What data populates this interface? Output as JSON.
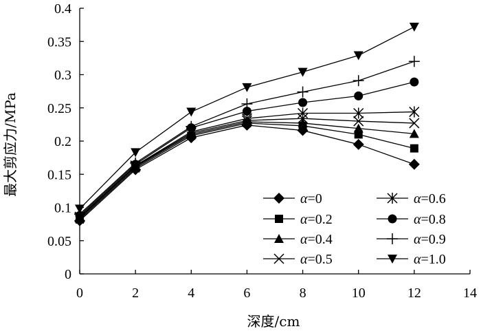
{
  "chart_data": {
    "type": "line",
    "title": "",
    "xlabel": "深度/cm",
    "ylabel": "最大剪应力/MPa",
    "xlim": [
      0,
      14
    ],
    "ylim": [
      0,
      0.4
    ],
    "xticks": [
      0,
      2,
      4,
      6,
      8,
      10,
      12,
      14
    ],
    "yticks": [
      0,
      0.05,
      0.1,
      0.15,
      0.2,
      0.25,
      0.3,
      0.35,
      0.4
    ],
    "ytick_labels": [
      "0",
      "0.05",
      "0.1",
      "0.15",
      "0.2",
      "0.25",
      "0.3",
      "0.35",
      "0.4"
    ],
    "x": [
      0,
      2,
      4,
      6,
      8,
      10,
      12
    ],
    "legend_prefix": "α",
    "legend_position": "bottom-right",
    "grid": false,
    "series": [
      {
        "name": "=0",
        "marker": "diamond",
        "values": [
          0.08,
          0.157,
          0.205,
          0.224,
          0.216,
          0.195,
          0.165
        ]
      },
      {
        "name": "=0.2",
        "marker": "square",
        "values": [
          0.082,
          0.159,
          0.208,
          0.227,
          0.223,
          0.21,
          0.189
        ]
      },
      {
        "name": "=0.4",
        "marker": "triangle",
        "values": [
          0.084,
          0.161,
          0.21,
          0.229,
          0.227,
          0.219,
          0.211
        ]
      },
      {
        "name": "=0.5",
        "marker": "x",
        "values": [
          0.085,
          0.162,
          0.212,
          0.231,
          0.234,
          0.23,
          0.227
        ]
      },
      {
        "name": "=0.6",
        "marker": "star",
        "values": [
          0.086,
          0.163,
          0.214,
          0.234,
          0.242,
          0.242,
          0.244
        ]
      },
      {
        "name": "=0.8",
        "marker": "circle",
        "values": [
          0.088,
          0.165,
          0.22,
          0.245,
          0.258,
          0.268,
          0.289
        ]
      },
      {
        "name": "=0.9",
        "marker": "plus",
        "values": [
          0.09,
          0.167,
          0.222,
          0.256,
          0.274,
          0.291,
          0.32
        ]
      },
      {
        "name": "=1.0",
        "marker": "triangle-down",
        "values": [
          0.098,
          0.183,
          0.244,
          0.281,
          0.304,
          0.329,
          0.372
        ]
      }
    ]
  }
}
